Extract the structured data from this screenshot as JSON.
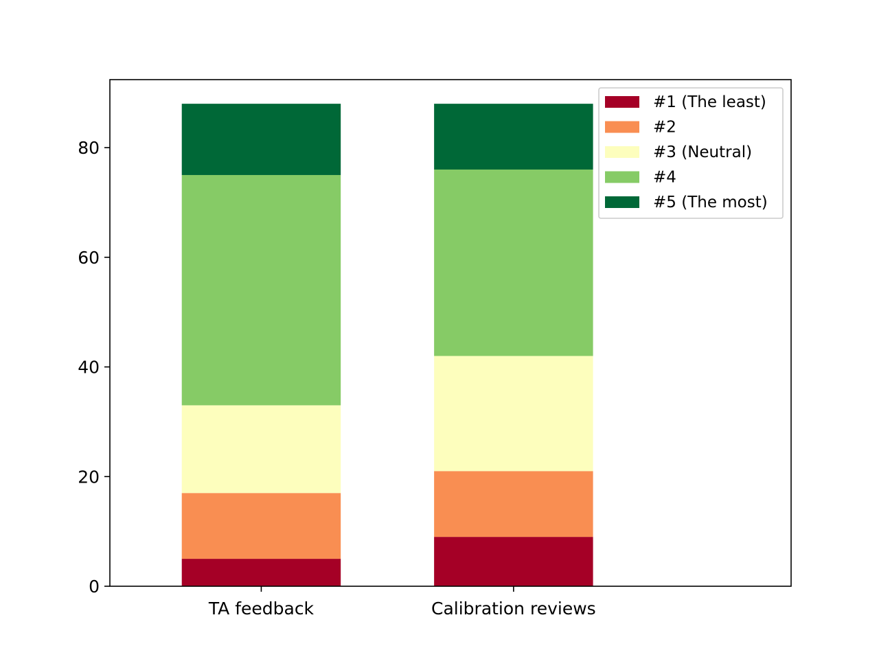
{
  "chart_data": {
    "type": "bar",
    "stacked": true,
    "categories": [
      "TA feedback",
      "Calibration reviews"
    ],
    "series": [
      {
        "name": "#1 (The least)",
        "values": [
          5,
          9
        ],
        "color": "#a50026"
      },
      {
        "name": "#2",
        "values": [
          12,
          12
        ],
        "color": "#f98e52"
      },
      {
        "name": "#3 (Neutral)",
        "values": [
          16,
          21
        ],
        "color": "#fdfebd"
      },
      {
        "name": "#4",
        "values": [
          42,
          34
        ],
        "color": "#86cb66"
      },
      {
        "name": "#5 (The most)",
        "values": [
          13,
          12
        ],
        "color": "#006837"
      }
    ],
    "title": "",
    "xlabel": "",
    "ylabel": "",
    "ylim": [
      0,
      92.4
    ],
    "yticks": [
      0,
      20,
      40,
      60,
      80
    ],
    "grid": false,
    "legend_position": "top-right"
  }
}
